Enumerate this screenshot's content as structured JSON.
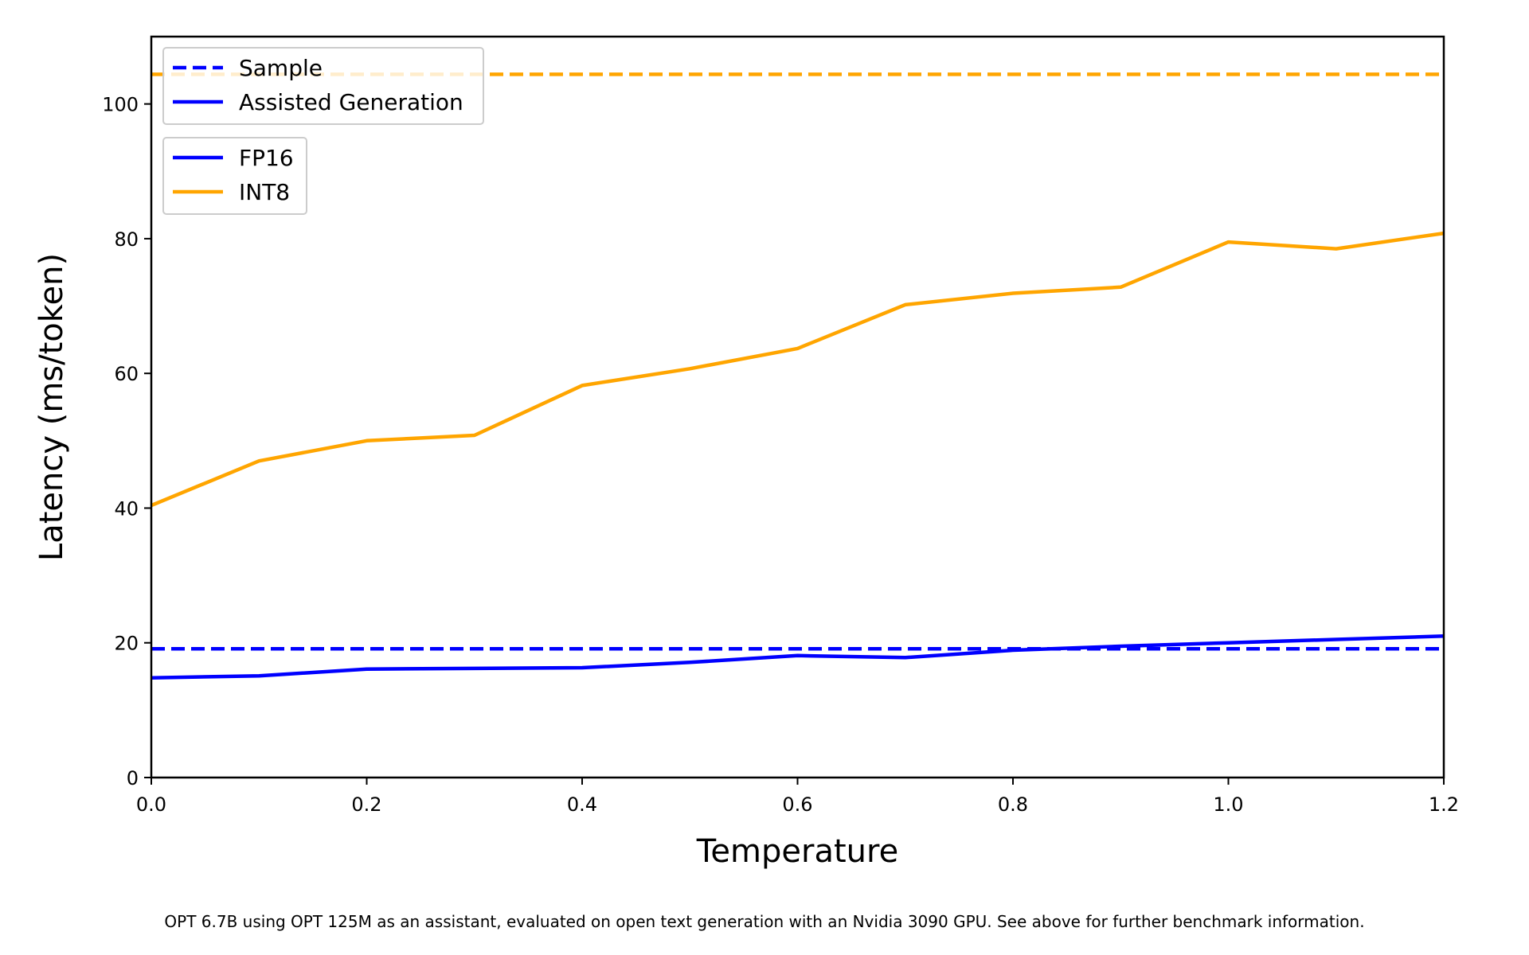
{
  "caption": "OPT 6.7B using OPT 125M as an assistant, evaluated on open text generation with an Nvidia 3090 GPU. See above for further benchmark information.",
  "chart_data": {
    "type": "line",
    "title": "",
    "xlabel": "Temperature",
    "ylabel": "Latency (ms/token)",
    "xlim": [
      0.0,
      1.2
    ],
    "ylim": [
      0,
      110
    ],
    "xticks": [
      0.0,
      0.2,
      0.4,
      0.6,
      0.8,
      1.0,
      1.2
    ],
    "xtick_labels": [
      "0.0",
      "0.2",
      "0.4",
      "0.6",
      "0.8",
      "1.0",
      "1.2"
    ],
    "yticks": [
      0,
      20,
      40,
      60,
      80,
      100
    ],
    "ytick_labels": [
      "0",
      "20",
      "40",
      "60",
      "80",
      "100"
    ],
    "grid": false,
    "colors": {
      "FP16": "#0000ff",
      "INT8": "#ffa500"
    },
    "legends": [
      {
        "placement": "upper-left",
        "entries": [
          {
            "label": "Sample",
            "style": "dashed",
            "color": "#0000ff"
          },
          {
            "label": "Assisted Generation",
            "style": "solid",
            "color": "#0000ff"
          }
        ]
      },
      {
        "placement": "upper-left (below first)",
        "entries": [
          {
            "label": "FP16",
            "style": "solid",
            "color": "#0000ff"
          },
          {
            "label": "INT8",
            "style": "solid",
            "color": "#ffa500"
          }
        ]
      }
    ],
    "series": [
      {
        "precision": "FP16",
        "method": "Sample",
        "style": "dashed",
        "color": "#0000ff",
        "x": [
          0.0,
          1.2
        ],
        "values": [
          19.1,
          19.1
        ]
      },
      {
        "precision": "INT8",
        "method": "Sample",
        "style": "dashed",
        "color": "#ffa500",
        "x": [
          0.0,
          1.2
        ],
        "values": [
          104.4,
          104.4
        ]
      },
      {
        "precision": "FP16",
        "method": "Assisted Generation",
        "style": "solid",
        "color": "#0000ff",
        "x": [
          0.0,
          0.1,
          0.2,
          0.3,
          0.4,
          0.5,
          0.6,
          0.7,
          0.8,
          0.9,
          1.0,
          1.1,
          1.2
        ],
        "values": [
          14.8,
          15.1,
          16.1,
          16.2,
          16.3,
          17.1,
          18.1,
          17.8,
          18.9,
          19.5,
          20.0,
          20.5,
          21.0
        ]
      },
      {
        "precision": "INT8",
        "method": "Assisted Generation",
        "style": "solid",
        "color": "#ffa500",
        "x": [
          0.0,
          0.1,
          0.2,
          0.3,
          0.4,
          0.5,
          0.6,
          0.7,
          0.8,
          0.9,
          1.0,
          1.1,
          1.2
        ],
        "values": [
          40.4,
          47.0,
          50.0,
          50.8,
          58.2,
          60.7,
          63.7,
          70.2,
          71.9,
          72.8,
          79.5,
          78.5,
          80.8
        ]
      }
    ]
  }
}
